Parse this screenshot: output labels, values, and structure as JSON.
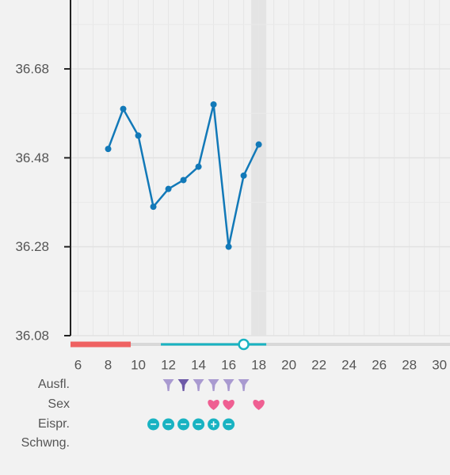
{
  "chart_data": {
    "type": "line",
    "x": [
      8,
      9,
      10,
      11,
      12,
      13,
      14,
      15,
      16,
      17,
      18
    ],
    "values": [
      36.5,
      36.59,
      36.53,
      36.37,
      36.41,
      36.43,
      36.46,
      36.6,
      36.28,
      36.44,
      36.51
    ],
    "color": "#1279b8",
    "xlim": [
      5.5,
      30.7
    ],
    "ylim": [
      36.08,
      36.835
    ],
    "xticks": [
      6,
      8,
      10,
      12,
      14,
      16,
      18,
      20,
      22,
      24,
      26,
      28,
      30
    ],
    "yticks": [
      36.08,
      36.28,
      36.48,
      36.68
    ],
    "grid": true,
    "today": 18,
    "period_days": [
      6,
      9
    ],
    "period_color": "#ef6262",
    "fertile_days": [
      12,
      18
    ],
    "fertile_color": "#19b3c2",
    "marker_day": 17,
    "rows": [
      {
        "label": "Ausfl.",
        "days": [
          12,
          13,
          14,
          15,
          16,
          17
        ],
        "colors": [
          "#a99ad0",
          "#6e5aa8",
          "#a99ad0",
          "#a99ad0",
          "#a99ad0",
          "#a99ad0"
        ]
      },
      {
        "label": "Sex",
        "days": [
          15,
          16,
          18
        ],
        "color": "#ef5f92"
      },
      {
        "label": "Eispr.",
        "days": [
          11,
          12,
          13,
          14,
          15,
          16
        ],
        "marks": [
          "−",
          "−",
          "−",
          "−",
          "+",
          "−"
        ],
        "color": "#19b3c2"
      },
      {
        "label": "Schwng.",
        "days": []
      }
    ]
  }
}
